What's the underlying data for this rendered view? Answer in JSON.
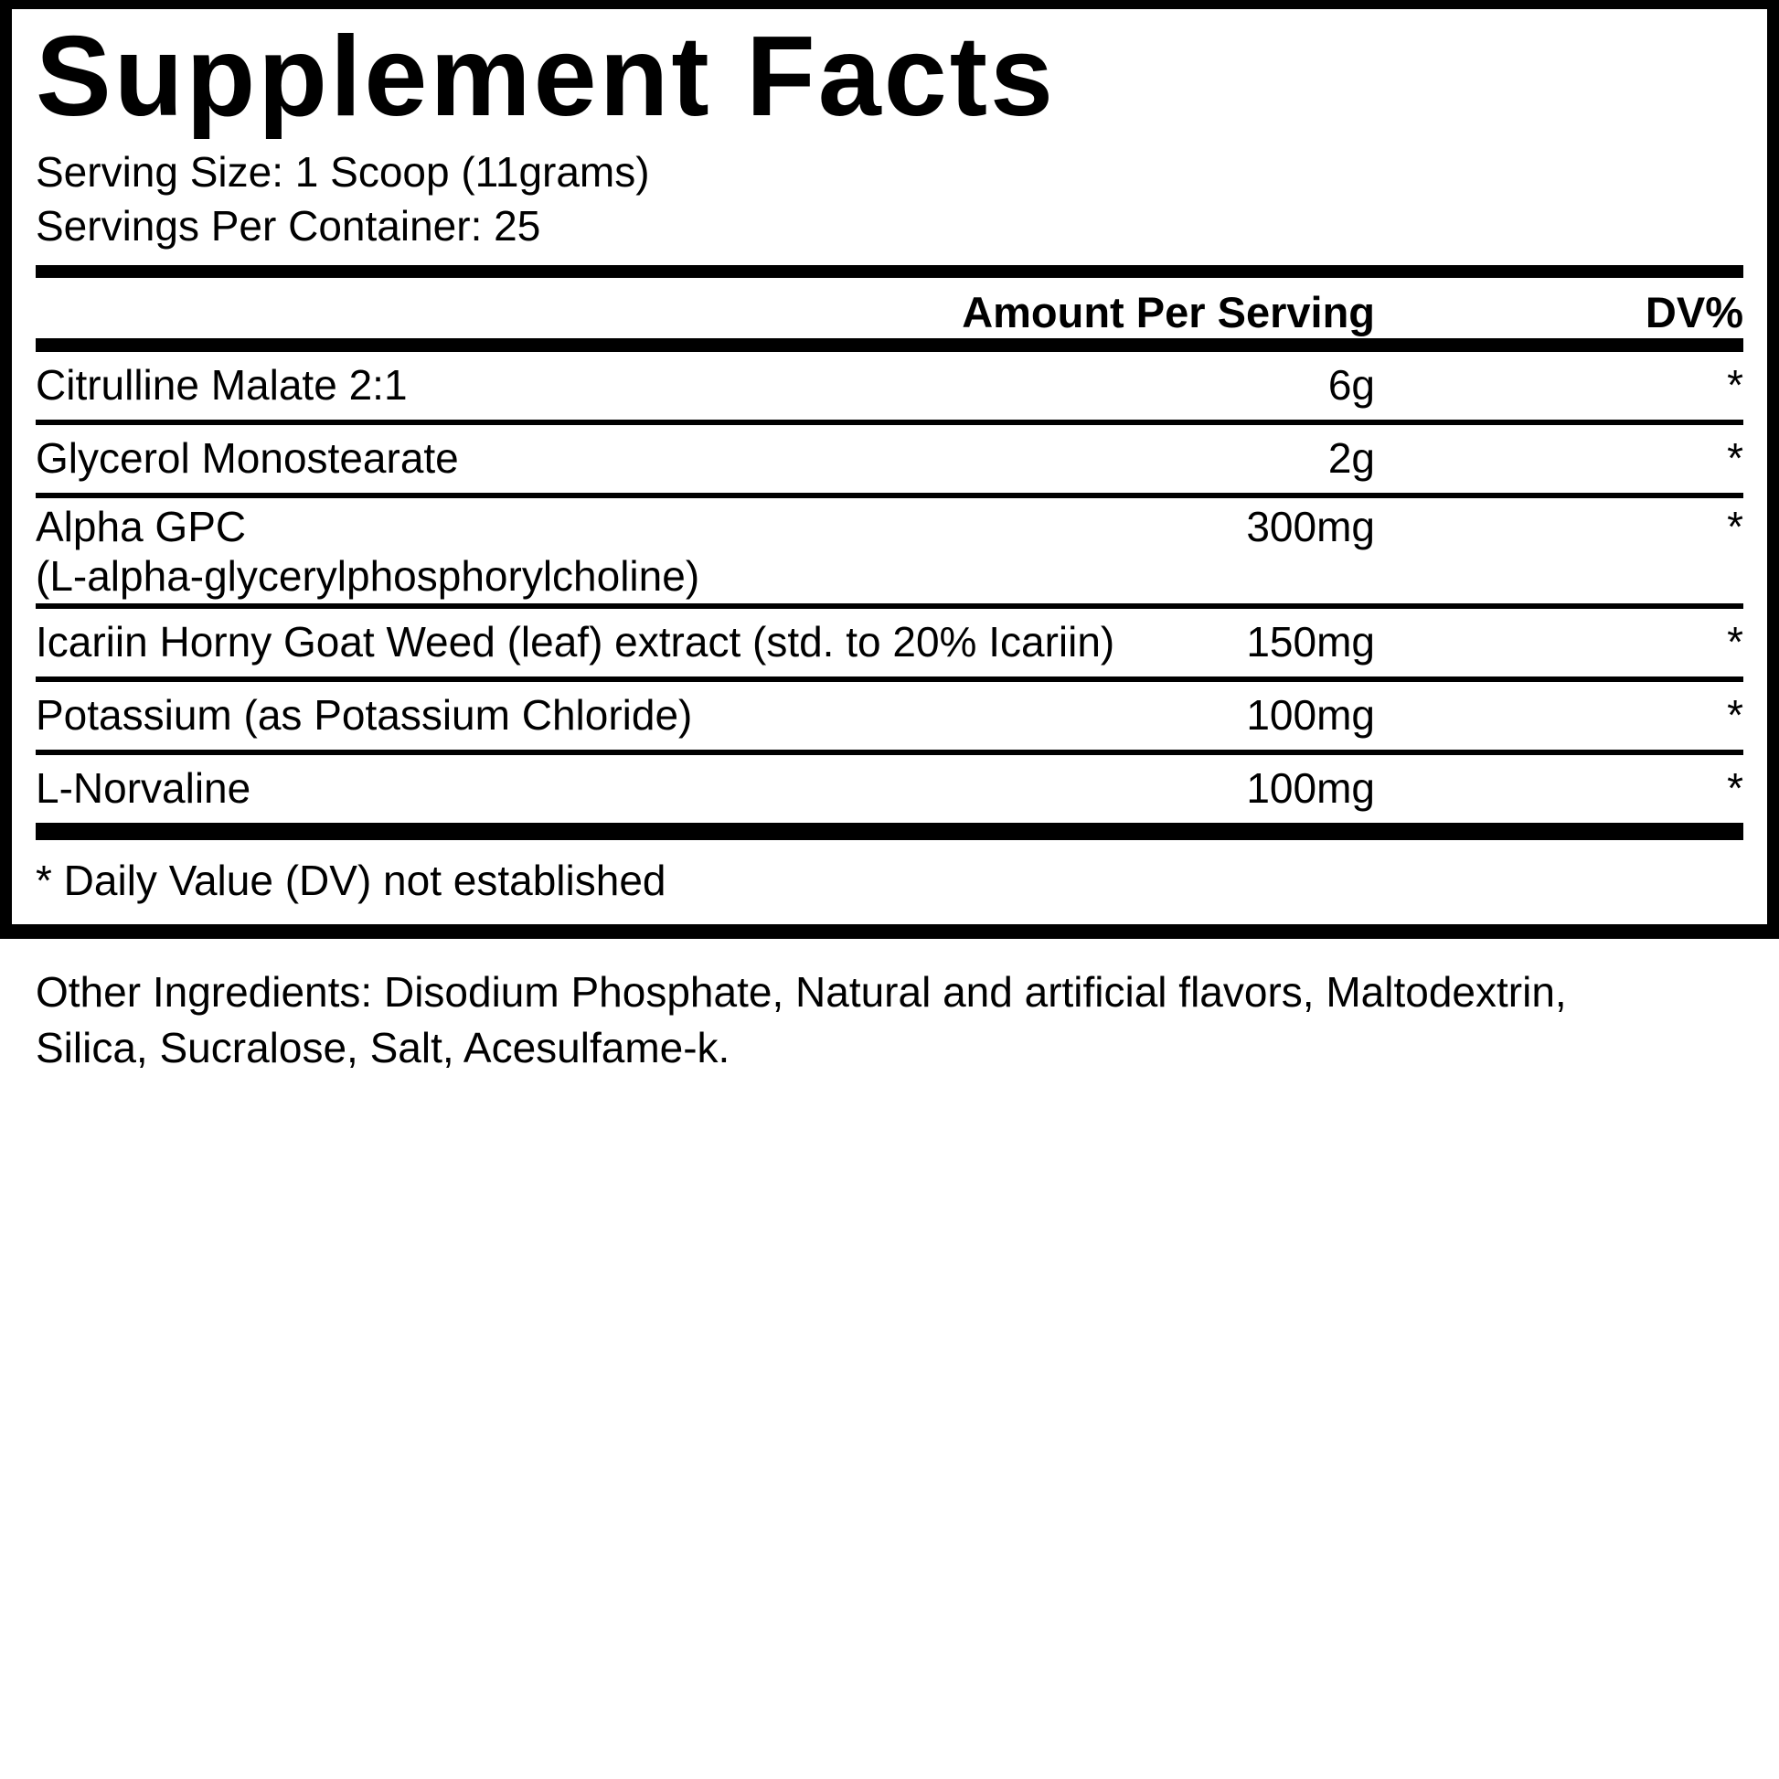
{
  "panel": {
    "title": "Supplement Facts",
    "serving_size": "Serving Size: 1 Scoop (11grams)",
    "servings_per_container": "Servings Per Container: 25",
    "columns": {
      "amount": "Amount Per Serving",
      "dv": "DV%"
    },
    "rows": [
      {
        "name": "Citrulline Malate 2:1",
        "amount": "6g",
        "dv": "*"
      },
      {
        "name": "Glycerol Monostearate",
        "amount": "2g",
        "dv": "*"
      },
      {
        "name": "Alpha GPC\n(L-alpha-glycerylphosphorylcholine)",
        "amount": "300mg",
        "dv": "*"
      },
      {
        "name": "Icariin Horny Goat Weed (leaf) extract (std. to 20% Icariin)",
        "amount": "150mg",
        "dv": "*"
      },
      {
        "name": "Potassium (as Potassium Chloride)",
        "amount": "100mg",
        "dv": "*"
      },
      {
        "name": "L-Norvaline",
        "amount": "100mg",
        "dv": "*"
      }
    ],
    "footnote": "* Daily Value (DV) not established",
    "other_ingredients": "Other Ingredients: Disodium Phosphate, Natural and artificial flavors, Maltodextrin,\nSilica, Sucralose, Salt, Acesulfame-k."
  },
  "colors": {
    "ink": "#000000",
    "background": "#ffffff"
  }
}
